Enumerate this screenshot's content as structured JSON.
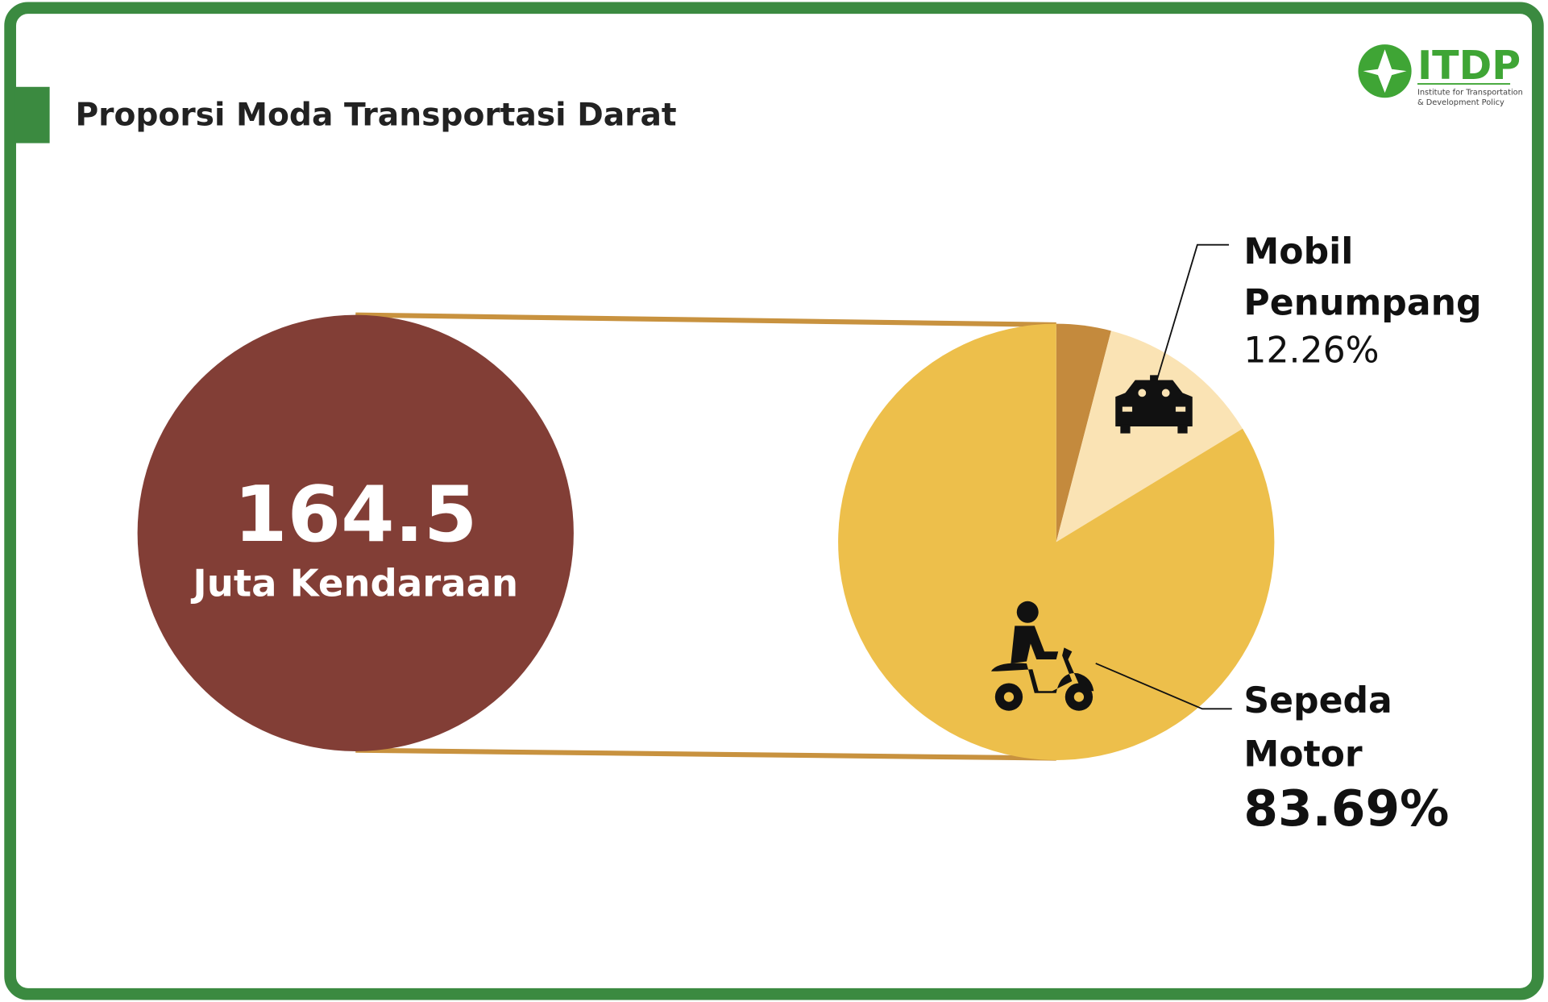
{
  "chart_data": {
    "type": "pie",
    "title": "Proporsi Moda Transportasi Darat",
    "total": 164.5,
    "total_label": "Juta Kendaraan",
    "categories": [
      null,
      "Mobil Penumpang",
      "Sepeda Motor"
    ],
    "values": [
      4.05,
      12.26,
      83.69
    ],
    "value_labels": [
      null,
      "12.26%",
      "83.69%"
    ],
    "colors": [
      "#c48a3d",
      "#fae3b4",
      "#edbf4b"
    ]
  },
  "logo": {
    "name": "ITDP",
    "tagline": [
      "Institute for Transportation",
      "& Development Policy"
    ]
  }
}
